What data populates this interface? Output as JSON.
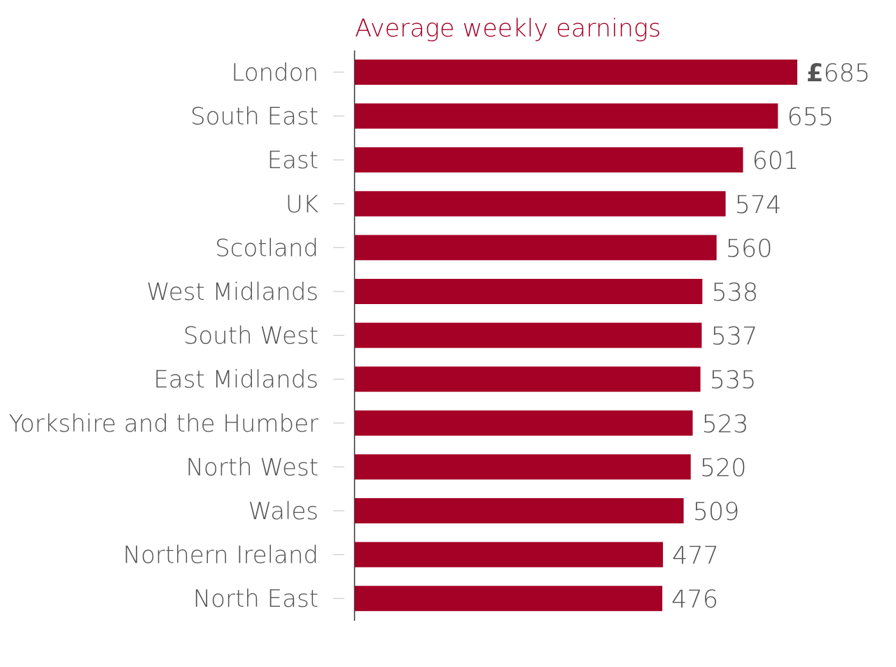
{
  "colors": {
    "bar": "#a50026",
    "title": "#a50026",
    "text": "#555555",
    "axis": "#333333",
    "tick": "#cccccc"
  },
  "chart_data": {
    "type": "bar",
    "orientation": "horizontal",
    "title": "Average weekly earnings",
    "value_prefix": "£",
    "categories": [
      "London",
      "South East",
      "East",
      "UK",
      "Scotland",
      "West Midlands",
      "South West",
      "East Midlands",
      "Yorkshire and the Humber",
      "North West",
      "Wales",
      "Northern Ireland",
      "North East"
    ],
    "values": [
      685,
      655,
      601,
      574,
      560,
      538,
      537,
      535,
      523,
      520,
      509,
      477,
      476
    ],
    "grid": false,
    "legend": "none"
  }
}
